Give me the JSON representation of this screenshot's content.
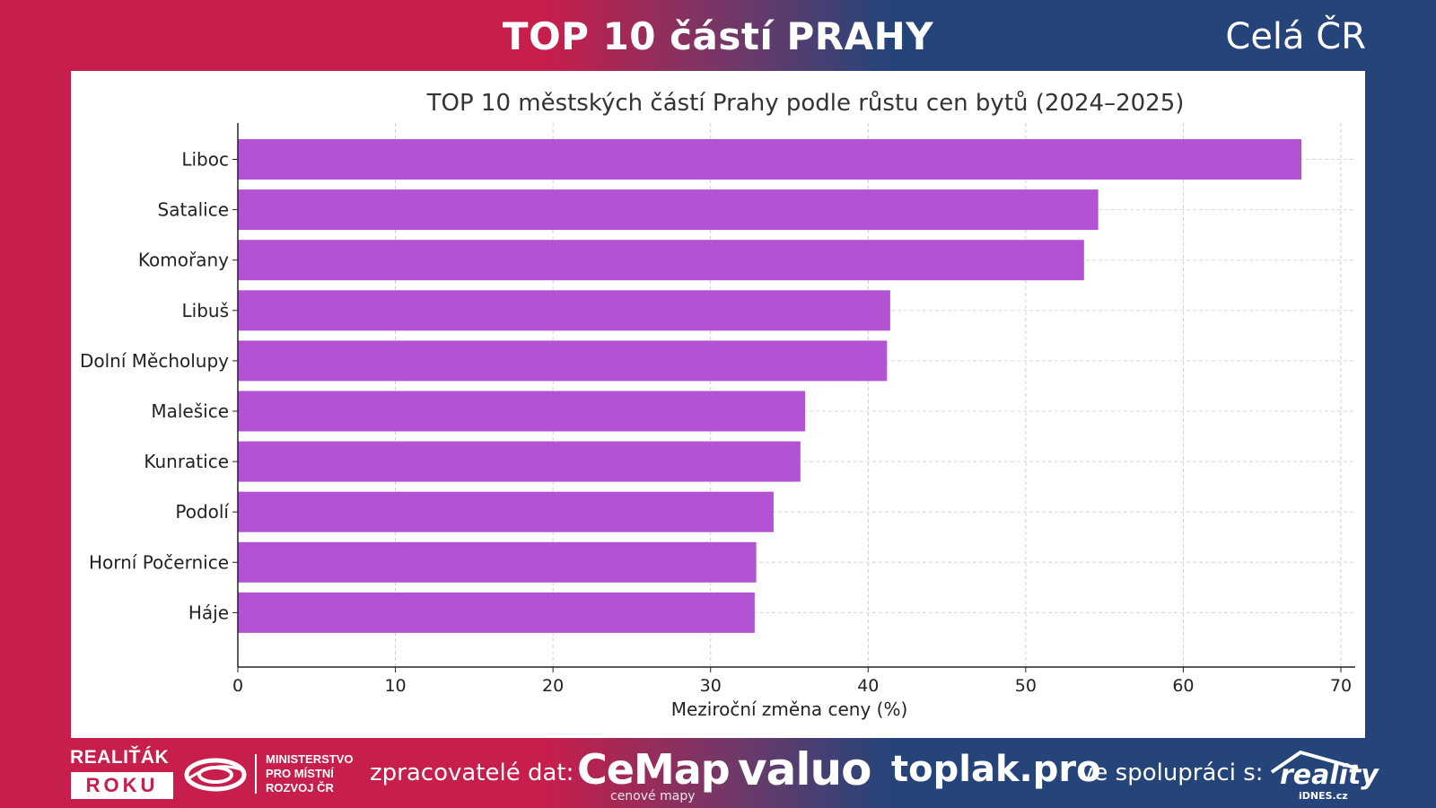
{
  "header": {
    "title": "TOP 10 částí PRAHY",
    "region": "Celá ČR"
  },
  "colors": {
    "bar": "#b452d4",
    "left_bg": "#c71e4b",
    "right_bg": "#25447a"
  },
  "chart_data": {
    "type": "bar",
    "orientation": "horizontal",
    "title": "TOP 10 městských částí Prahy podle růstu cen bytů (2024–2025)",
    "xlabel": "Meziroční změna ceny (%)",
    "ylabel": "",
    "xlim": [
      0,
      70
    ],
    "xticks": [
      0,
      10,
      20,
      30,
      40,
      50,
      60,
      70
    ],
    "grid": true,
    "categories": [
      "Liboc",
      "Satalice",
      "Komořany",
      "Libuš",
      "Dolní Měcholupy",
      "Malešice",
      "Kunratice",
      "Podolí",
      "Horní Počernice",
      "Háje"
    ],
    "values": [
      67.5,
      54.6,
      53.7,
      41.4,
      41.2,
      36.0,
      35.7,
      34.0,
      32.9,
      32.8
    ]
  },
  "footer": {
    "brand_top": "REALIŤÁK",
    "brand_bottom": "ROKU",
    "ministry_lines": [
      "MINISTERSTVO",
      "PRO MÍSTNÍ",
      "ROZVOJ ČR"
    ],
    "processors_label": "zpracovatelé dat:",
    "cemap": "CeMap",
    "cemap_sub": "cenové mapy",
    "valuo": "valuo",
    "toplak": "toplak.pro",
    "coop_label": "ve spolupráci s:",
    "reality": "reality",
    "reality_sub": "iDNES.cz"
  }
}
